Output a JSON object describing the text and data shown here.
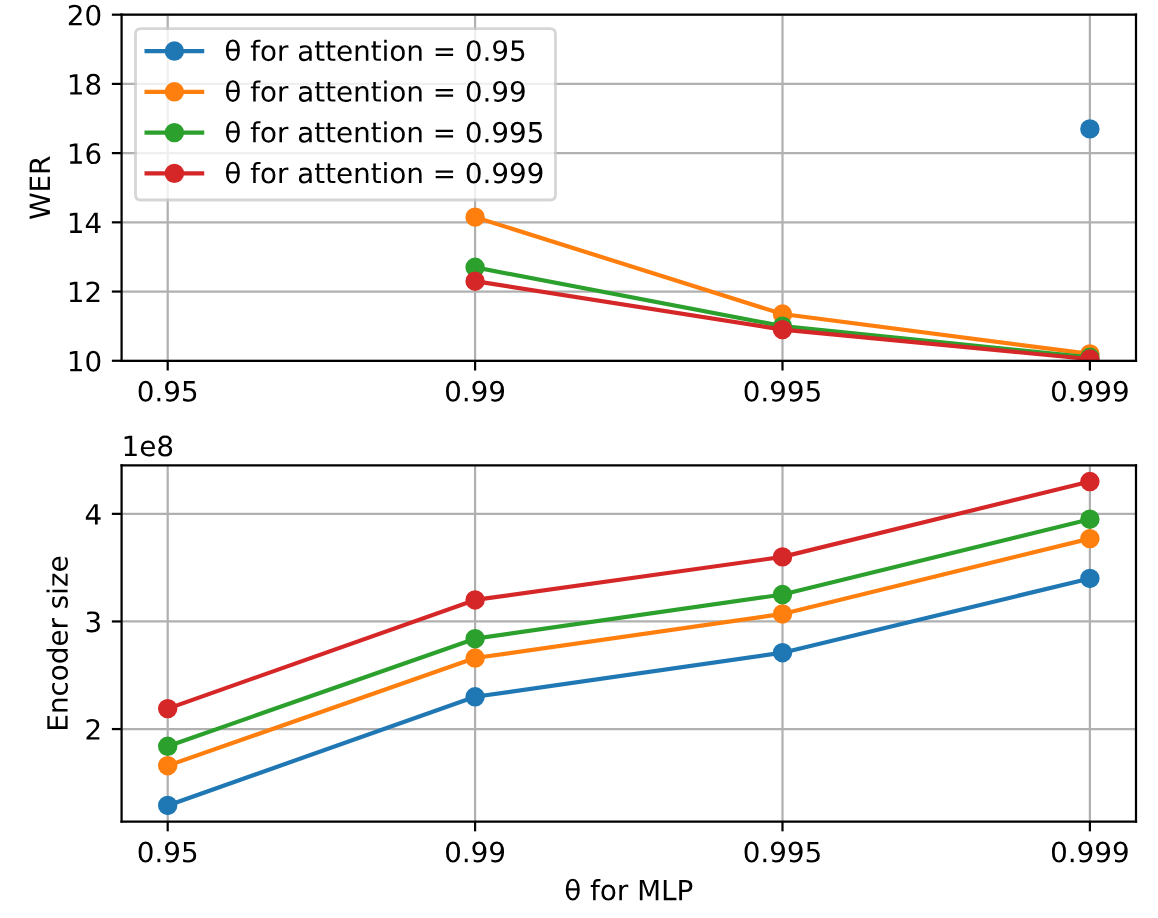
{
  "chart_data": [
    {
      "type": "line",
      "ylabel": "WER",
      "categories": [
        "0.95",
        "0.99",
        "0.995",
        "0.999"
      ],
      "ylim": [
        10,
        20
      ],
      "yticks": [
        10,
        12,
        14,
        16,
        18,
        20
      ],
      "grid": true,
      "legend": "top left",
      "marker": "circle",
      "line_style": "solid",
      "series": [
        {
          "name": "θ for attention = 0.95",
          "color": "#1f77b4",
          "values": [
            null,
            null,
            null,
            16.7
          ]
        },
        {
          "name": "θ for attention = 0.99",
          "color": "#ff7f0e",
          "values": [
            null,
            14.15,
            11.35,
            10.2
          ]
        },
        {
          "name": "θ for attention = 0.995",
          "color": "#2ca02c",
          "values": [
            null,
            12.7,
            11.0,
            10.1
          ]
        },
        {
          "name": "θ for attention = 0.999",
          "color": "#d62728",
          "values": [
            null,
            12.3,
            10.9,
            10.05
          ]
        }
      ]
    },
    {
      "type": "line",
      "xlabel": "θ for MLP",
      "ylabel": "Encoder size",
      "annotations": [
        "1e8"
      ],
      "categories": [
        "0.95",
        "0.99",
        "0.995",
        "0.999"
      ],
      "ylim": [
        1.14,
        4.45
      ],
      "yticks": [
        2,
        3,
        4
      ],
      "grid": true,
      "marker": "circle",
      "line_style": "solid",
      "series": [
        {
          "color": "#1f77b4",
          "values": [
            1.29,
            2.3,
            2.71,
            3.4
          ]
        },
        {
          "color": "#ff7f0e",
          "values": [
            1.66,
            2.66,
            3.07,
            3.77
          ]
        },
        {
          "color": "#2ca02c",
          "values": [
            1.84,
            2.84,
            3.25,
            3.95
          ]
        },
        {
          "color": "#d62728",
          "values": [
            2.19,
            3.2,
            3.6,
            4.3
          ]
        }
      ]
    }
  ]
}
